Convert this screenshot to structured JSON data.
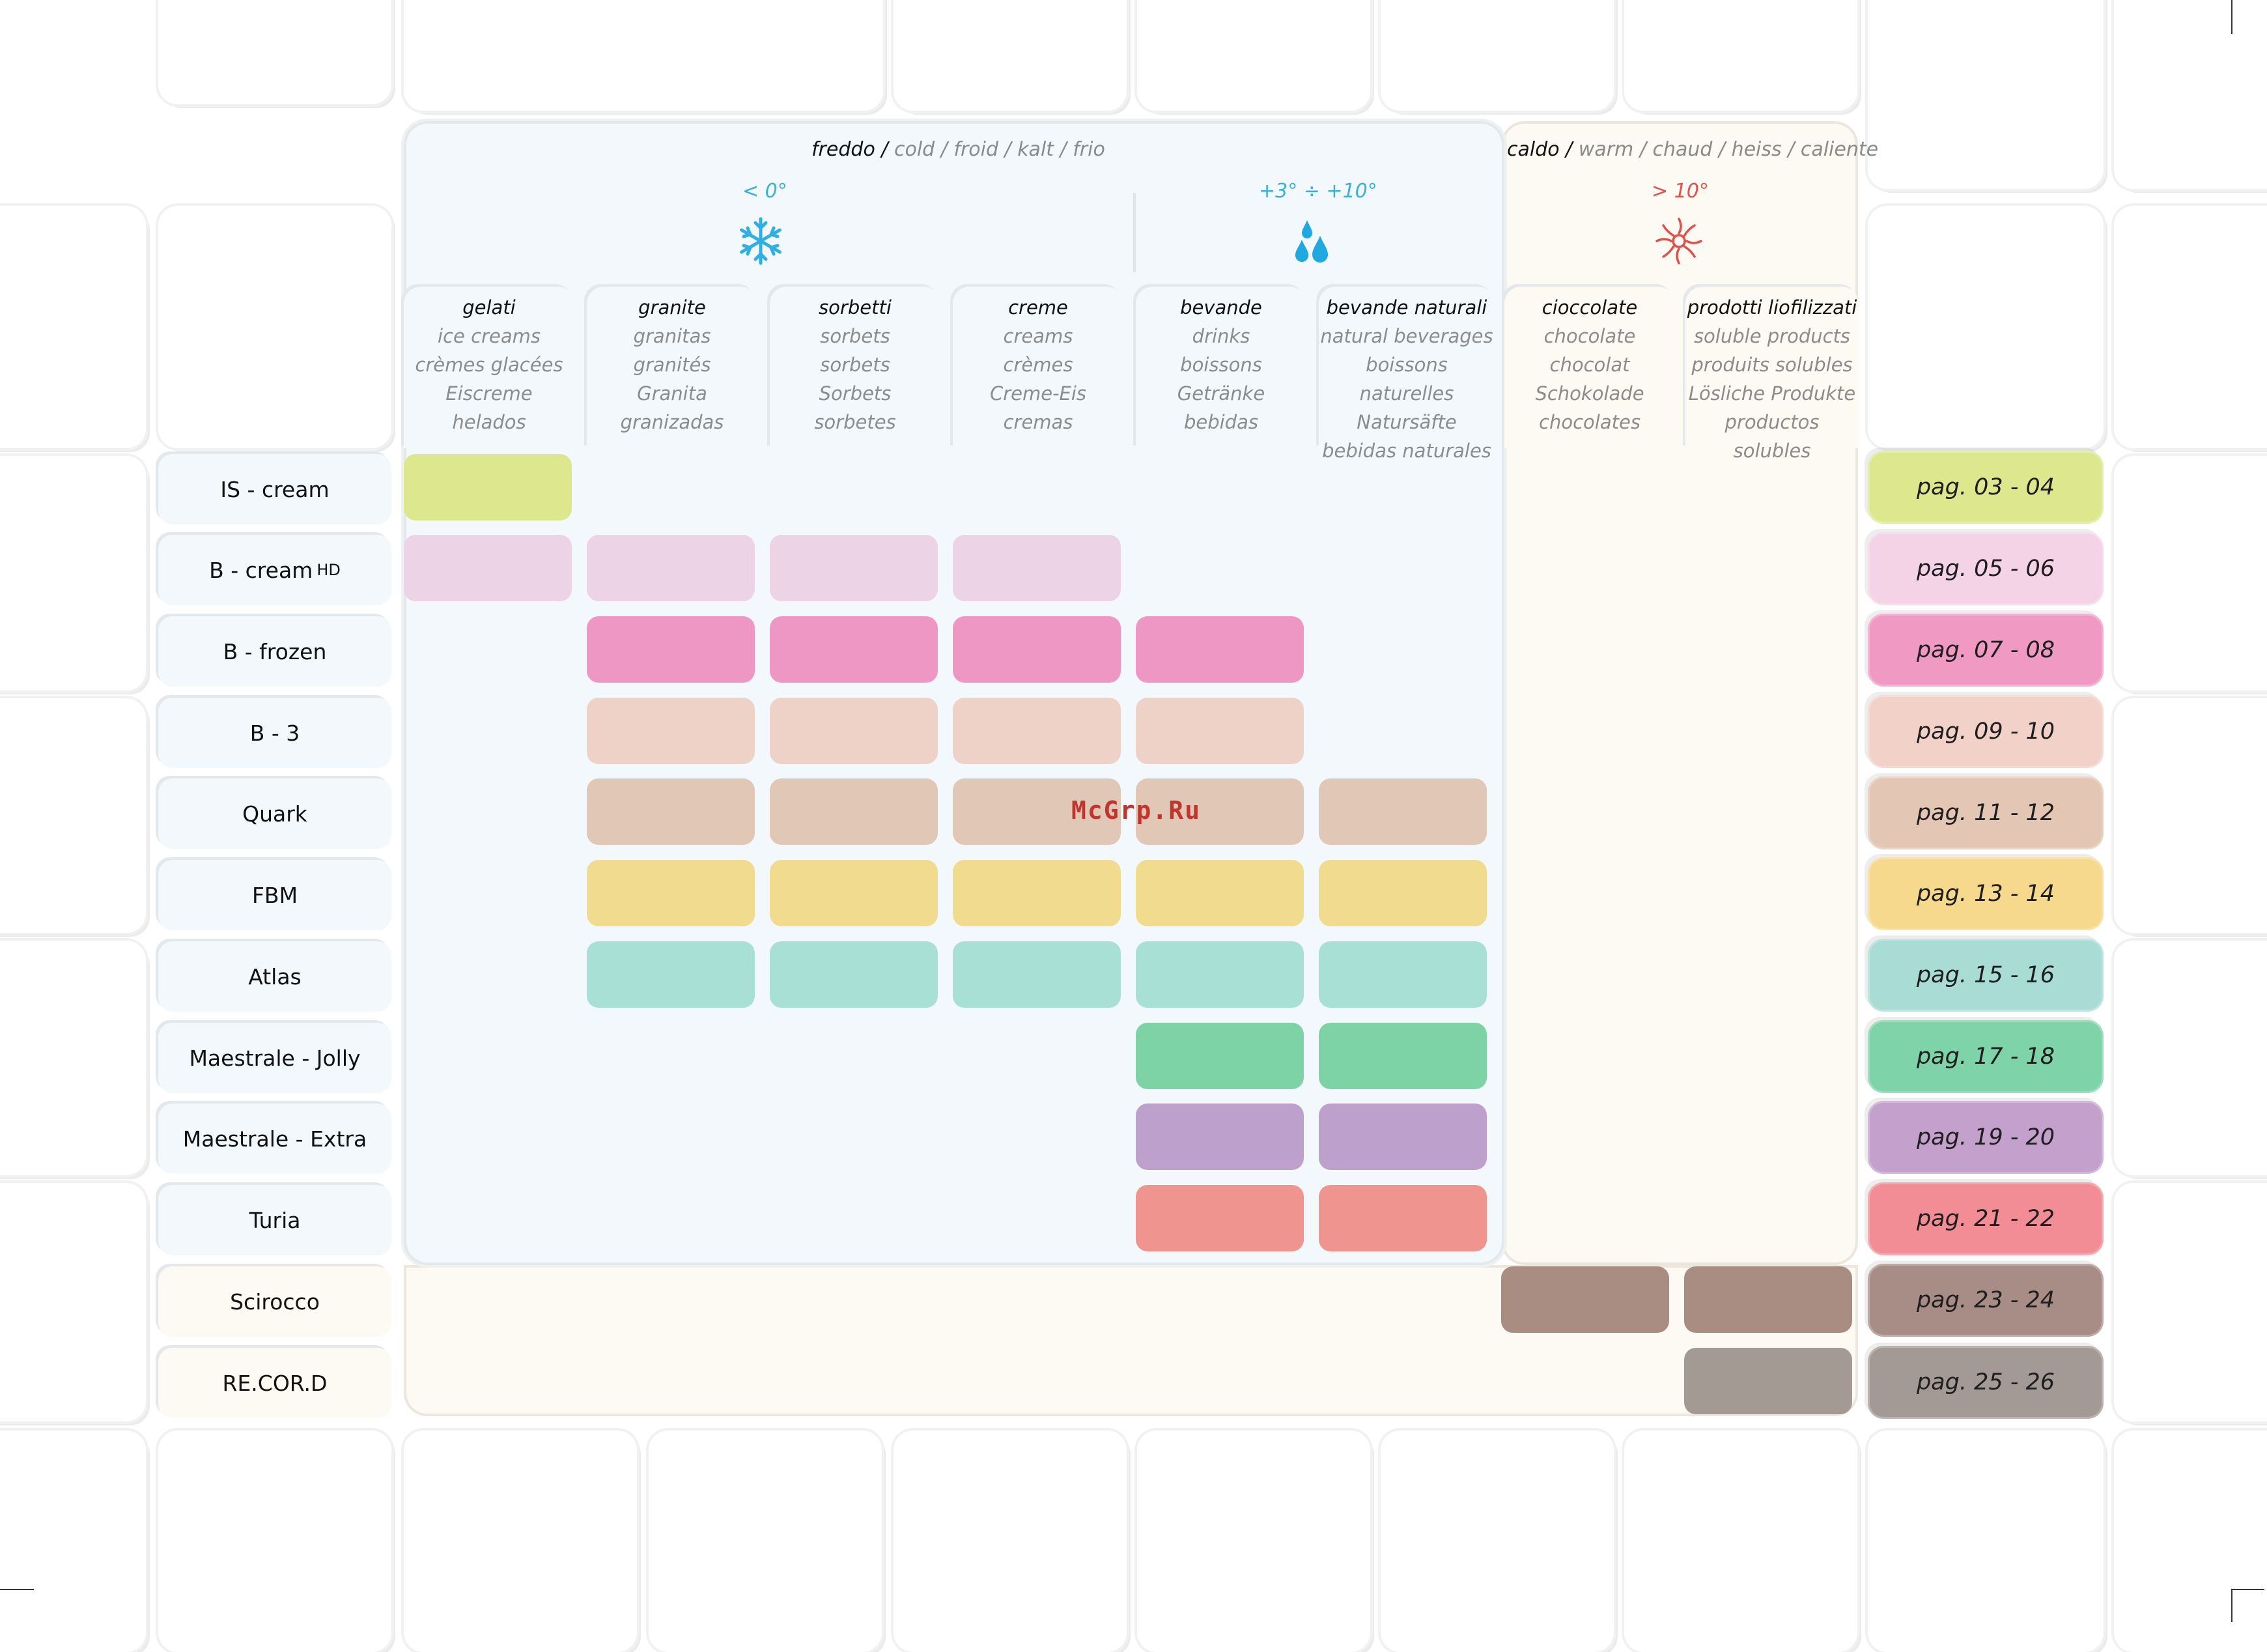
{
  "header": {
    "cold": {
      "main": "freddo /",
      "alt": " cold / froid / kalt / frio"
    },
    "warm": {
      "main": "caldo /",
      "alt": " warm / chaud / heiss / caliente"
    }
  },
  "temperatures": {
    "frozen": "< 0°",
    "chilled": "+3°  ÷ +10°",
    "hot": "> 10°"
  },
  "icons": [
    "snowflake-icon",
    "water-drops-icon",
    "sun-icon"
  ],
  "columns": [
    {
      "title": "gelati",
      "langs": [
        "ice creams",
        "crèmes glacées",
        "Eiscreme",
        "helados"
      ]
    },
    {
      "title": "granite",
      "langs": [
        "granitas",
        "granités",
        "Granita",
        "granizadas"
      ]
    },
    {
      "title": "sorbetti",
      "langs": [
        "sorbets",
        "sorbets",
        "Sorbets",
        "sorbetes"
      ]
    },
    {
      "title": "creme",
      "langs": [
        "creams",
        "crèmes",
        "Creme-Eis",
        "cremas"
      ]
    },
    {
      "title": "bevande",
      "langs": [
        "drinks",
        "boissons",
        "Getränke",
        "bebidas"
      ]
    },
    {
      "title": "bevande naturali",
      "langs": [
        "natural beverages",
        "boissons naturelles",
        "Natursäfte",
        "bebidas naturales"
      ]
    },
    {
      "title": "cioccolate",
      "langs": [
        "chocolate",
        "chocolat",
        "Schokolade",
        "chocolates"
      ]
    },
    {
      "title": "prodotti liofilizzati",
      "langs": [
        "soluble products",
        "produits solubles",
        "Lösliche Produkte",
        "productos solubles"
      ]
    }
  ],
  "rows": [
    {
      "label": "IS - cream",
      "suffix": "",
      "page": "pag. 03 - 04",
      "color": "#dde88e",
      "cells": [
        0
      ]
    },
    {
      "label": "B - cream",
      "suffix": "HD",
      "page": "pag. 05 - 06",
      "color": "#edd3e6",
      "page_color": "#f3d3e5",
      "cells": [
        0,
        1,
        2,
        3
      ]
    },
    {
      "label": "B - frozen",
      "suffix": "",
      "page": "pag. 07 - 08",
      "color": "#ef97c4",
      "page_color": "#f09ac3",
      "cells": [
        1,
        2,
        3,
        4
      ]
    },
    {
      "label": "B - 3",
      "suffix": "",
      "page": "pag. 09 - 10",
      "color": "#eed2c8",
      "page_color": "#f2d1c8",
      "cells": [
        1,
        2,
        3,
        4
      ]
    },
    {
      "label": "Quark",
      "suffix": "",
      "page": "pag. 11 - 12",
      "color": "#e1c8b6",
      "page_color": "#e3c6b3",
      "cells": [
        1,
        2,
        3,
        4,
        5
      ]
    },
    {
      "label": "FBM",
      "suffix": "",
      "page": "pag. 13 - 14",
      "color": "#f1db8e",
      "page_color": "#f6d98c",
      "cells": [
        1,
        2,
        3,
        4,
        5
      ]
    },
    {
      "label": "Atlas",
      "suffix": "",
      "page": "pag. 15 - 16",
      "color": "#a8e0d6",
      "page_color": "#a9dcd4",
      "cells": [
        1,
        2,
        3,
        4,
        5
      ]
    },
    {
      "label": "Maestrale - Jolly",
      "suffix": "",
      "page": "pag. 17 - 18",
      "color": "#7dd2a6",
      "page_color": "#7ed3a8",
      "cells": [
        4,
        5
      ]
    },
    {
      "label": "Maestrale - Extra",
      "suffix": "",
      "page": "pag. 19 - 20",
      "color": "#bea0cd",
      "page_color": "#c3a1cc",
      "cells": [
        4,
        5
      ]
    },
    {
      "label": "Turia",
      "suffix": "",
      "page": "pag. 21 - 22",
      "color": "#f0948f",
      "page_color": "#f28d96",
      "cells": [
        4,
        5
      ]
    },
    {
      "label": "Scirocco",
      "suffix": "",
      "page": "pag. 23 - 24",
      "color": "#a98d83",
      "page_color": "#a88c86",
      "cells": [
        6,
        7
      ],
      "warm": true
    },
    {
      "label": "RE.COR.D",
      "suffix": "",
      "page": "pag. 25 - 26",
      "color": "#a39a93",
      "page_color": "#a39a96",
      "cells": [
        7
      ],
      "warm": true
    }
  ],
  "watermark": "McGrp.Ru"
}
